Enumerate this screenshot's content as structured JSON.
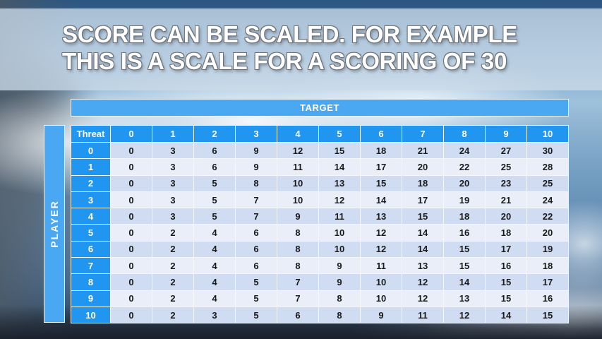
{
  "slide": {
    "title_line1": "SCORE CAN BE SCALED. FOR EXAMPLE",
    "title_line2": "THIS IS A SCALE FOR A SCORING OF 30"
  },
  "table": {
    "target_label": "TARGET",
    "player_label": "PLAYER",
    "corner_label": "Threat",
    "column_headers": [
      "0",
      "1",
      "2",
      "3",
      "4",
      "5",
      "6",
      "7",
      "8",
      "9",
      "10"
    ],
    "rows": [
      {
        "label": "0",
        "values": [
          0,
          3,
          6,
          9,
          12,
          15,
          18,
          21,
          24,
          27,
          30
        ]
      },
      {
        "label": "1",
        "values": [
          0,
          3,
          6,
          9,
          11,
          14,
          17,
          20,
          22,
          25,
          28
        ]
      },
      {
        "label": "2",
        "values": [
          0,
          3,
          5,
          8,
          10,
          13,
          15,
          18,
          20,
          23,
          25
        ]
      },
      {
        "label": "3",
        "values": [
          0,
          3,
          5,
          7,
          10,
          12,
          14,
          17,
          19,
          21,
          24
        ]
      },
      {
        "label": "4",
        "values": [
          0,
          3,
          5,
          7,
          9,
          11,
          13,
          15,
          18,
          20,
          22
        ]
      },
      {
        "label": "5",
        "values": [
          0,
          2,
          4,
          6,
          8,
          10,
          12,
          14,
          16,
          18,
          20
        ]
      },
      {
        "label": "6",
        "values": [
          0,
          2,
          4,
          6,
          8,
          10,
          12,
          14,
          15,
          17,
          19
        ]
      },
      {
        "label": "7",
        "values": [
          0,
          2,
          4,
          6,
          8,
          9,
          11,
          13,
          15,
          16,
          18
        ]
      },
      {
        "label": "8",
        "values": [
          0,
          2,
          4,
          5,
          7,
          9,
          10,
          12,
          14,
          15,
          17
        ]
      },
      {
        "label": "9",
        "values": [
          0,
          2,
          4,
          5,
          7,
          8,
          10,
          12,
          13,
          15,
          16
        ]
      },
      {
        "label": "10",
        "values": [
          0,
          2,
          3,
          5,
          6,
          8,
          9,
          11,
          12,
          14,
          15
        ]
      }
    ]
  },
  "colors": {
    "header_blue": "#2196f0",
    "banner_blue": "#4aa7f2",
    "row_dark": "#cfdcf2",
    "row_light": "#e9eef9",
    "grid_line": "#f3f7fc",
    "title_text": "#ffffff"
  }
}
